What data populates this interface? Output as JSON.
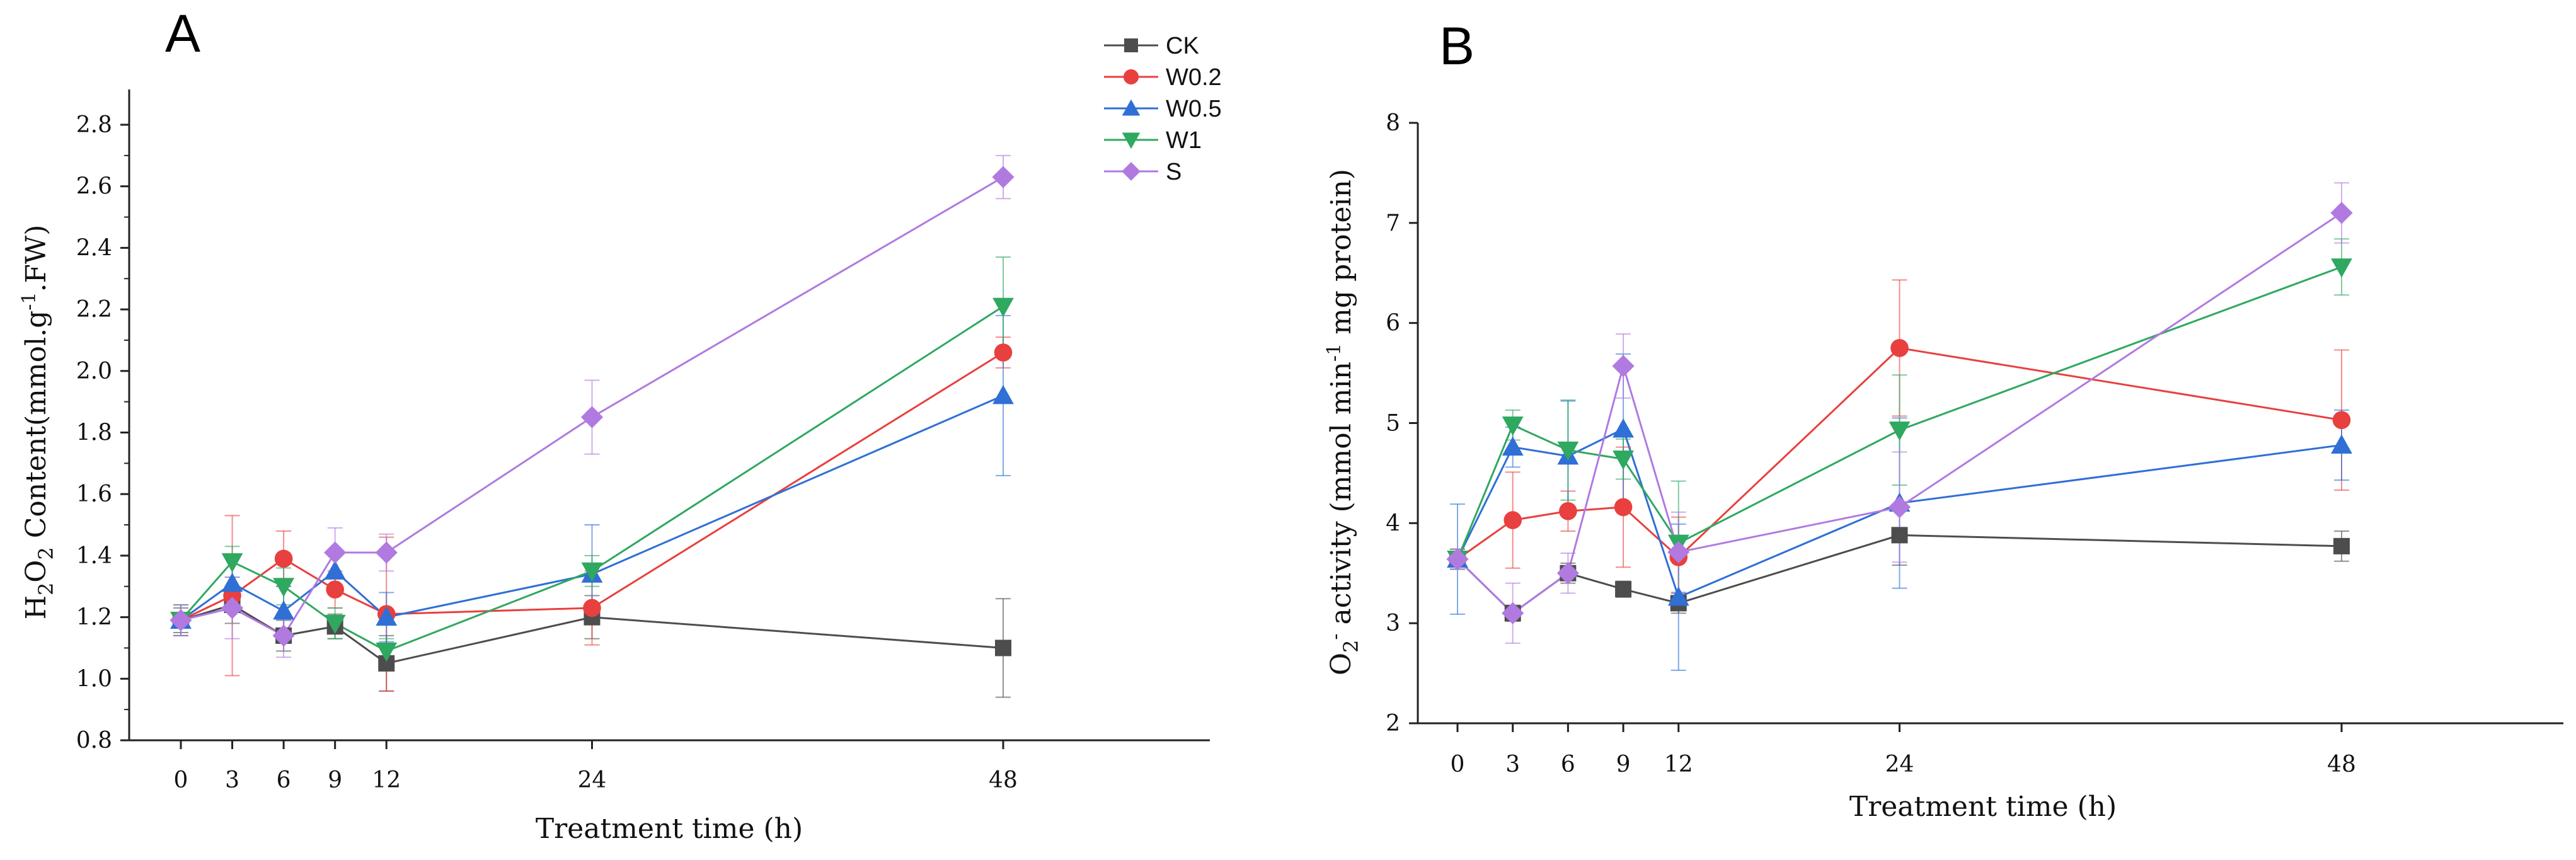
{
  "chart_data": [
    {
      "type": "line",
      "panel": "A",
      "ylabel": {
        "part1": "H",
        "sub1": "2",
        "part2": "O",
        "sub2": "2",
        "part3": " Content(mmol.g",
        "sup": "-1",
        "part4": ".FW)"
      },
      "xlabel": "Treatment time (h)",
      "x": [
        0,
        3,
        6,
        9,
        12,
        24,
        48
      ],
      "xlim": [
        -2,
        58
      ],
      "ylim": [
        0.8,
        2.9
      ],
      "yticks": [
        0.8,
        1.0,
        1.2,
        1.4,
        1.6,
        1.8,
        2.0,
        2.2,
        2.4,
        2.6,
        2.8
      ],
      "ytick_labels": [
        "0.8",
        "1.0",
        "1.2",
        "1.4",
        "1.6",
        "1.8",
        "2.0",
        "2.2",
        "2.4",
        "2.6",
        "2.8"
      ],
      "xtick_labels": [
        "0",
        "3",
        "6",
        "9",
        "12",
        "24",
        "48"
      ],
      "series": [
        {
          "name": "CK",
          "values": [
            1.19,
            1.24,
            1.14,
            1.17,
            1.05,
            1.2,
            1.1
          ],
          "errors": [
            0.04,
            0.06,
            0.05,
            0.04,
            0.09,
            0.07,
            0.16
          ]
        },
        {
          "name": "W0.2",
          "values": [
            1.19,
            1.27,
            1.39,
            1.29,
            1.21,
            1.23,
            2.06
          ],
          "errors": [
            0.05,
            0.26,
            0.09,
            0.06,
            0.25,
            0.12,
            0.05
          ]
        },
        {
          "name": "W0.5",
          "values": [
            1.19,
            1.31,
            1.22,
            1.35,
            1.2,
            1.34,
            1.92
          ],
          "errors": [
            0.05,
            0.09,
            0.08,
            0.07,
            0.08,
            0.16,
            0.26
          ]
        },
        {
          "name": "W1",
          "values": [
            1.19,
            1.38,
            1.3,
            1.18,
            1.09,
            1.35,
            2.21
          ],
          "errors": [
            0.05,
            0.05,
            0.06,
            0.05,
            0.04,
            0.05,
            0.16
          ]
        },
        {
          "name": "S",
          "values": [
            1.19,
            1.23,
            1.14,
            1.41,
            1.41,
            1.85,
            2.63
          ],
          "errors": [
            0.05,
            0.1,
            0.07,
            0.08,
            0.06,
            0.12,
            0.07
          ]
        }
      ]
    },
    {
      "type": "line",
      "panel": "B",
      "ylabel": {
        "part1": "O",
        "sub1": "2",
        "sup1": "-",
        "part2": " activity (mmol min",
        "sup2": "-1",
        "part3": " mg protein)"
      },
      "xlabel": "Treatment time (h)",
      "x": [
        0,
        3,
        6,
        9,
        12,
        24,
        48
      ],
      "xlim": [
        -2,
        58
      ],
      "ylim": [
        2,
        8
      ],
      "yticks": [
        2,
        3,
        4,
        5,
        6,
        7,
        8
      ],
      "ytick_labels": [
        "2",
        "3",
        "4",
        "5",
        "6",
        "7",
        "8"
      ],
      "xtick_labels": [
        "0",
        "3",
        "6",
        "9",
        "12",
        "24",
        "48"
      ],
      "series": [
        {
          "name": "CK",
          "values": [
            3.64,
            3.1,
            3.5,
            3.34,
            3.2,
            3.88,
            3.77
          ],
          "errors": [
            0.1,
            0.08,
            0.1,
            0.08,
            0.1,
            0.3,
            0.15
          ]
        },
        {
          "name": "W0.2",
          "values": [
            3.64,
            4.03,
            4.12,
            4.16,
            3.66,
            5.75,
            5.03
          ],
          "errors": [
            0.1,
            0.48,
            0.2,
            0.6,
            0.4,
            0.68,
            0.7
          ]
        },
        {
          "name": "W0.5",
          "values": [
            3.64,
            4.76,
            4.67,
            4.94,
            3.26,
            4.2,
            4.78
          ],
          "errors": [
            0.55,
            0.2,
            0.55,
            0.75,
            0.73,
            0.85,
            0.35
          ]
        },
        {
          "name": "W1",
          "values": [
            3.64,
            4.98,
            4.73,
            4.64,
            3.8,
            4.93,
            6.56
          ],
          "errors": [
            0.1,
            0.15,
            0.5,
            0.2,
            0.62,
            0.55,
            0.28
          ]
        },
        {
          "name": "S",
          "values": [
            3.64,
            3.1,
            3.5,
            5.57,
            3.71,
            4.16,
            7.1
          ],
          "errors": [
            0.1,
            0.3,
            0.2,
            0.32,
            0.4,
            0.55,
            0.3
          ]
        }
      ]
    }
  ],
  "figure": {
    "panel_labels": [
      "A",
      "B"
    ],
    "legend": [
      {
        "name": "CK",
        "marker": "square",
        "color": "#4d4d4d"
      },
      {
        "name": "W0.2",
        "marker": "circle",
        "color": "#e8403f"
      },
      {
        "name": "W0.5",
        "marker": "triangle-up",
        "color": "#2f6fd6"
      },
      {
        "name": "W1",
        "marker": "triangle-down",
        "color": "#2fa860"
      },
      {
        "name": "S",
        "marker": "diamond",
        "color": "#b07ae0"
      }
    ],
    "series_colors": {
      "CK": "#4d4d4d",
      "W0.2": "#e8403f",
      "W0.5": "#2f6fd6",
      "W1": "#2fa860",
      "S": "#b07ae0"
    },
    "series_markers": {
      "CK": "square",
      "W0.2": "circle",
      "W0.5": "triangle-up",
      "W1": "triangle-down",
      "S": "diamond"
    }
  }
}
